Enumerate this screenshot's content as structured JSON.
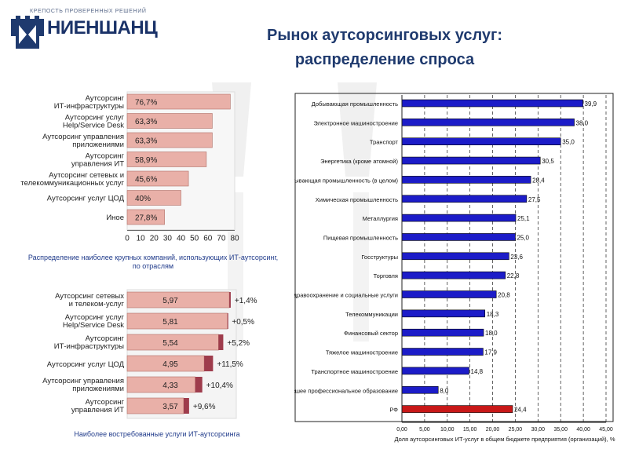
{
  "header": {
    "logo_tagline": "КРЕПОСТЬ ПРОВЕРЕННЫХ РЕШЕНИЙ",
    "logo_name": "НИЕНШАНЦ",
    "title_line1": "Рынок аутсорсинговых услуг:",
    "title_line2": "распределение спроса"
  },
  "captions": {
    "left_top": "Распределение наиболее крупных компаний, использующих ИТ-аутсорсинг, по отраслям",
    "left_bottom": "Наиболее востребованные услуги ИТ-аутсорсинга"
  },
  "colors": {
    "bar_pink": "#e9b0a8",
    "bar_pink_border": "#b07068",
    "bar_dark": "#9e3c4c",
    "bar_blue": "#1c1cc8",
    "bar_red": "#c81818",
    "title": "#1f3a6e"
  },
  "chart_data": [
    {
      "type": "bar",
      "orientation": "horizontal",
      "categories": [
        [
          "Аутсорсинг",
          "ИТ-инфраструктуры"
        ],
        [
          "Аутсорсинг услуг",
          "Help/Service Desk"
        ],
        [
          "Аутсорсинг управления",
          "приложениями"
        ],
        [
          "Аутсорсинг",
          "управления ИТ"
        ],
        [
          "Аутсорсинг сетевых и",
          "телекоммуникационных услуг"
        ],
        [
          "Аутсорсинг услуг ЦОД"
        ],
        [
          "Иное"
        ]
      ],
      "values": [
        76.7,
        63.3,
        63.3,
        58.9,
        45.6,
        40,
        27.8
      ],
      "data_labels": [
        "76,7%",
        "63,3%",
        "63,3%",
        "58,9%",
        "45,6%",
        "40%",
        "27,8%"
      ],
      "xlim": [
        0,
        80
      ],
      "xticks": [
        "0",
        "10",
        "20",
        "30",
        "40",
        "50",
        "60",
        "70",
        "80"
      ]
    },
    {
      "type": "bar",
      "orientation": "horizontal",
      "categories": [
        [
          "Аутсорсинг сетевых",
          "и телеком-услуг"
        ],
        [
          "Аутсорсинг услуг",
          "Help/Service Desk"
        ],
        [
          "Аутсорсинг",
          "ИТ-инфраструктуры"
        ],
        [
          "Аутсорсинг услуг ЦОД"
        ],
        [
          "Аутсорсинг управления",
          "приложениями"
        ],
        [
          "Аутсорсинг",
          "управления ИТ"
        ]
      ],
      "values": [
        5.97,
        5.81,
        5.54,
        4.95,
        4.33,
        3.57
      ],
      "data_labels": [
        "5,97",
        "5,81",
        "5,54",
        "4,95",
        "4,33",
        "3,57"
      ],
      "growth_labels": [
        "+1,4%",
        "+0,5%",
        "+5,2%",
        "+11,5%",
        "+10,4%",
        "+9,6%"
      ],
      "xlim": [
        0,
        6.2
      ]
    },
    {
      "type": "bar",
      "orientation": "horizontal",
      "categories": [
        "Добывающая промышленность",
        "Электронное машиностроение",
        "Транспорт",
        "Энергетика (кроме атомной)",
        "Обрабатывающая промышленность (в целом)",
        "Химическая промышленность",
        "Металлургия",
        "Пищевая промышленность",
        "Госструктуры",
        "Торговля",
        "Здравоохранение и социальные услуги",
        "Телекоммуникации",
        "Финансовый сектор",
        "Тяжелое машиностроение",
        "Транспортное машиностроение",
        "Высшее профессиональное образование",
        "РФ"
      ],
      "values": [
        39.9,
        38.0,
        35.0,
        30.5,
        28.4,
        27.5,
        25.1,
        25.0,
        23.6,
        22.8,
        20.8,
        18.3,
        18.0,
        17.9,
        14.8,
        8.0,
        24.4
      ],
      "data_labels": [
        "39,9",
        "38,0",
        "35,0",
        "30,5",
        "28,4",
        "27,5",
        "25,1",
        "25,0",
        "23,6",
        "22,8",
        "20,8",
        "18,3",
        "18,0",
        "17,9",
        "14,8",
        "8,0",
        "24,4"
      ],
      "highlight": "РФ",
      "xlim": [
        0,
        45
      ],
      "xticks": [
        "0,00",
        "5,00",
        "10,00",
        "15,00",
        "20,00",
        "25,00",
        "30,00",
        "35,00",
        "40,00",
        "45,00"
      ],
      "xlabel": "Доля аутсорсинговых ИТ-услуг в общем бюджете предприятия (организаций), %",
      "grid_x": true
    }
  ]
}
